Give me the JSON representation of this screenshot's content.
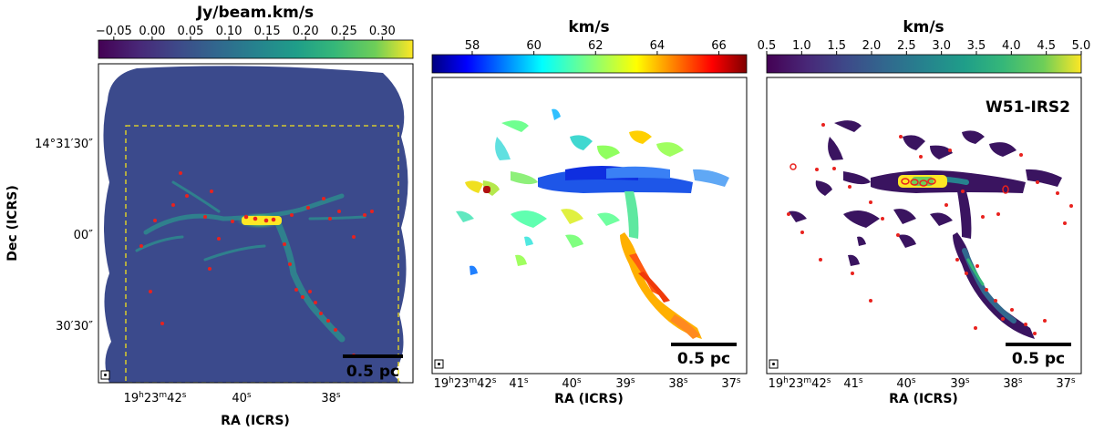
{
  "chart_data": [
    {
      "type": "heatmap",
      "panel": "left",
      "map_type": "integrated intensity (moment 0)",
      "colorbar": {
        "label": "Jy/beam.km/s",
        "colormap": "viridis",
        "range": [
          -0.07,
          0.34
        ],
        "ticks": [
          -0.05,
          0.0,
          0.05,
          0.1,
          0.15,
          0.2,
          0.25,
          0.3
        ],
        "tick_labels": [
          "−0.05",
          "0.00",
          "0.05",
          "0.10",
          "0.15",
          "0.20",
          "0.25",
          "0.30"
        ]
      },
      "xlabel": "RA (ICRS)",
      "ylabel": "Dec (ICRS)",
      "x_tick_labels": [
        "19h23m42s",
        "40s",
        "38s"
      ],
      "x_tick_parts": [
        {
          "base": "19",
          "sup1": "h",
          "mid": "23",
          "sup2": "m",
          "end": "42",
          "sup3": "s"
        },
        {
          "base": "",
          "sup1": "",
          "mid": "",
          "sup2": "",
          "end": "40",
          "sup3": "s"
        },
        {
          "base": "",
          "sup1": "",
          "mid": "",
          "sup2": "",
          "end": "38",
          "sup3": "s"
        }
      ],
      "y_tick_labels": [
        "14°31′30″",
        "00″",
        "30′30″"
      ],
      "scale_bar": "0.5 pc",
      "overlay": "dashed yellow rectangle marking zoomed region; red ellipses mark cores",
      "beam_marker": true
    },
    {
      "type": "heatmap",
      "panel": "middle",
      "map_type": "velocity field (moment 1)",
      "colorbar": {
        "label": "km/s",
        "colormap": "jet",
        "range": [
          56.7,
          66.9
        ],
        "ticks": [
          58,
          60,
          62,
          64,
          66
        ],
        "tick_labels": [
          "58",
          "60",
          "62",
          "64",
          "66"
        ]
      },
      "xlabel": "RA (ICRS)",
      "x_tick_labels": [
        "19h23m42s",
        "41s",
        "40s",
        "39s",
        "38s",
        "37s"
      ],
      "x_tick_parts": [
        {
          "base": "19",
          "sup1": "h",
          "mid": "23",
          "sup2": "m",
          "end": "42",
          "sup3": "s"
        },
        {
          "base": "",
          "sup1": "",
          "mid": "",
          "sup2": "",
          "end": "41",
          "sup3": "s"
        },
        {
          "base": "",
          "sup1": "",
          "mid": "",
          "sup2": "",
          "end": "40",
          "sup3": "s"
        },
        {
          "base": "",
          "sup1": "",
          "mid": "",
          "sup2": "",
          "end": "39",
          "sup3": "s"
        },
        {
          "base": "",
          "sup1": "",
          "mid": "",
          "sup2": "",
          "end": "38",
          "sup3": "s"
        },
        {
          "base": "",
          "sup1": "",
          "mid": "",
          "sup2": "",
          "end": "37",
          "sup3": "s"
        }
      ],
      "scale_bar": "0.5 pc",
      "beam_marker": true
    },
    {
      "type": "heatmap",
      "panel": "right",
      "map_type": "velocity dispersion (moment 2)",
      "colorbar": {
        "label": "km/s",
        "colormap": "viridis",
        "range": [
          0.5,
          5.0
        ],
        "ticks": [
          0.5,
          1.0,
          1.5,
          2.0,
          2.5,
          3.0,
          3.5,
          4.0,
          4.5,
          5.0
        ],
        "tick_labels": [
          "0.5",
          "1.0",
          "1.5",
          "2.0",
          "2.5",
          "3.0",
          "3.5",
          "4.0",
          "4.5",
          "5.0"
        ]
      },
      "xlabel": "RA (ICRS)",
      "x_tick_labels": [
        "19h23m42s",
        "41s",
        "40s",
        "39s",
        "38s",
        "37s"
      ],
      "x_tick_parts": [
        {
          "base": "19",
          "sup1": "h",
          "mid": "23",
          "sup2": "m",
          "end": "42",
          "sup3": "s"
        },
        {
          "base": "",
          "sup1": "",
          "mid": "",
          "sup2": "",
          "end": "41",
          "sup3": "s"
        },
        {
          "base": "",
          "sup1": "",
          "mid": "",
          "sup2": "",
          "end": "40",
          "sup3": "s"
        },
        {
          "base": "",
          "sup1": "",
          "mid": "",
          "sup2": "",
          "end": "39",
          "sup3": "s"
        },
        {
          "base": "",
          "sup1": "",
          "mid": "",
          "sup2": "",
          "end": "38",
          "sup3": "s"
        },
        {
          "base": "",
          "sup1": "",
          "mid": "",
          "sup2": "",
          "end": "37",
          "sup3": "s"
        }
      ],
      "annotation": "W51-IRS2",
      "scale_bar": "0.5 pc",
      "overlay": "red ellipses mark cores",
      "beam_marker": true
    }
  ]
}
